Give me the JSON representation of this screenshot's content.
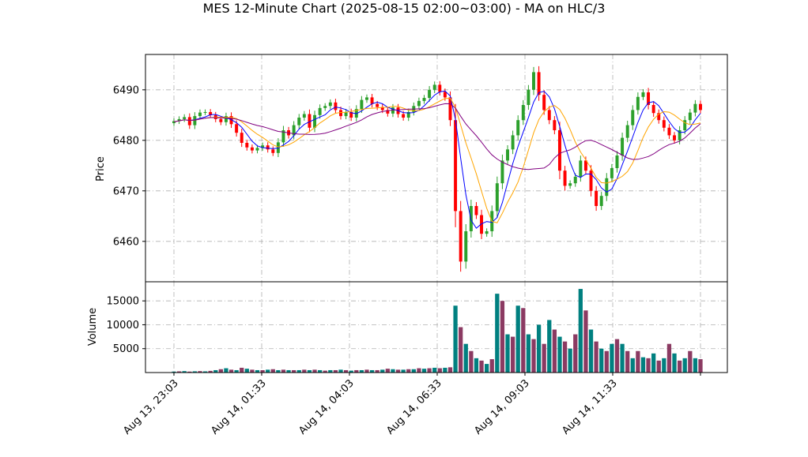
{
  "chart_data": [
    {
      "type": "candlestick",
      "title": "MES 12-Minute Chart (2025-08-15 02:00~03:00) - MA on HLC/3",
      "ylabel": "Price",
      "ylim": [
        6452,
        6497
      ],
      "yticks": [
        6460,
        6470,
        6480,
        6490
      ],
      "x_ticks": [
        "Aug 13, 23:03",
        "Aug 14, 01:33",
        "Aug 14, 04:03",
        "Aug 14, 06:33",
        "Aug 14, 09:03",
        "Aug 14, 11:33"
      ],
      "grid": true,
      "up_color": "#2ca02c",
      "down_color": "#ff0000",
      "ma_colors": [
        "#0000ff",
        "#ffa500",
        "#800080"
      ],
      "close_series": [
        6483.8,
        6484.2,
        6484.6,
        6483.0,
        6484.8,
        6485.5,
        6485.6,
        6485.0,
        6484.2,
        6483.6,
        6484.8,
        6483.2,
        6481.5,
        6479.5,
        6478.6,
        6478.0,
        6478.5,
        6479.0,
        6478.2,
        6477.5,
        6479.6,
        6482.0,
        6481.0,
        6483.0,
        6484.5,
        6485.2,
        6482.5,
        6485.0,
        6486.4,
        6486.8,
        6487.5,
        6486.0,
        6484.8,
        6485.6,
        6484.5,
        6486.2,
        6488.0,
        6488.5,
        6487.2,
        6486.6,
        6486.0,
        6485.3,
        6486.5,
        6485.2,
        6484.5,
        6485.6,
        6486.8,
        6487.8,
        6488.4,
        6490.0,
        6491.0,
        6489.6,
        6488.5,
        6484.0,
        6466.0,
        6456.0,
        6462.0,
        6467.0,
        6465.2,
        6461.5,
        6462.0,
        6466.0,
        6471.5,
        6476.0,
        6478.2,
        6481.0,
        6484.0,
        6487.0,
        6490.0,
        6493.5,
        6489.0,
        6486.0,
        6484.0,
        6482.0,
        6474.0,
        6471.0,
        6471.5,
        6472.8,
        6476.0,
        6474.0,
        6470.0,
        6467.0,
        6469.0,
        6472.5,
        6474.5,
        6477.0,
        6480.5,
        6483.0,
        6486.0,
        6488.6,
        6489.5,
        6487.0,
        6485.4,
        6484.0,
        6482.5,
        6481.0,
        6480.0,
        6482.0,
        6484.0,
        6485.5,
        6487.2,
        6486.0
      ],
      "volume_ylabel": "Volume",
      "volume_yticks": [
        5000,
        10000,
        15000
      ],
      "volume_ylim": [
        0,
        19000
      ],
      "volume_values": [
        200,
        250,
        300,
        200,
        260,
        300,
        250,
        350,
        500,
        700,
        900,
        600,
        500,
        1000,
        800,
        600,
        500,
        500,
        600,
        700,
        500,
        600,
        500,
        500,
        500,
        600,
        500,
        600,
        500,
        400,
        500,
        500,
        600,
        500,
        400,
        500,
        500,
        600,
        500,
        500,
        600,
        800,
        700,
        600,
        600,
        700,
        700,
        900,
        800,
        900,
        1000,
        900,
        1000,
        1100,
        14000,
        9500,
        6000,
        4500,
        3000,
        2500,
        1800,
        2800,
        16500,
        15000,
        8000,
        7500,
        14000,
        13500,
        8000,
        7000,
        10000,
        6000,
        11000,
        9000,
        7500,
        6500,
        5000,
        8000,
        17500,
        13000,
        9000,
        6500,
        5000,
        4500,
        6000,
        7000,
        6000,
        4500,
        3000,
        4500,
        3200,
        3000,
        4000,
        2500,
        3000,
        6000,
        4000,
        2500,
        3000,
        4500,
        3000,
        2800
      ],
      "volume_colors": [
        "#008080",
        "#8b3a62"
      ]
    }
  ]
}
